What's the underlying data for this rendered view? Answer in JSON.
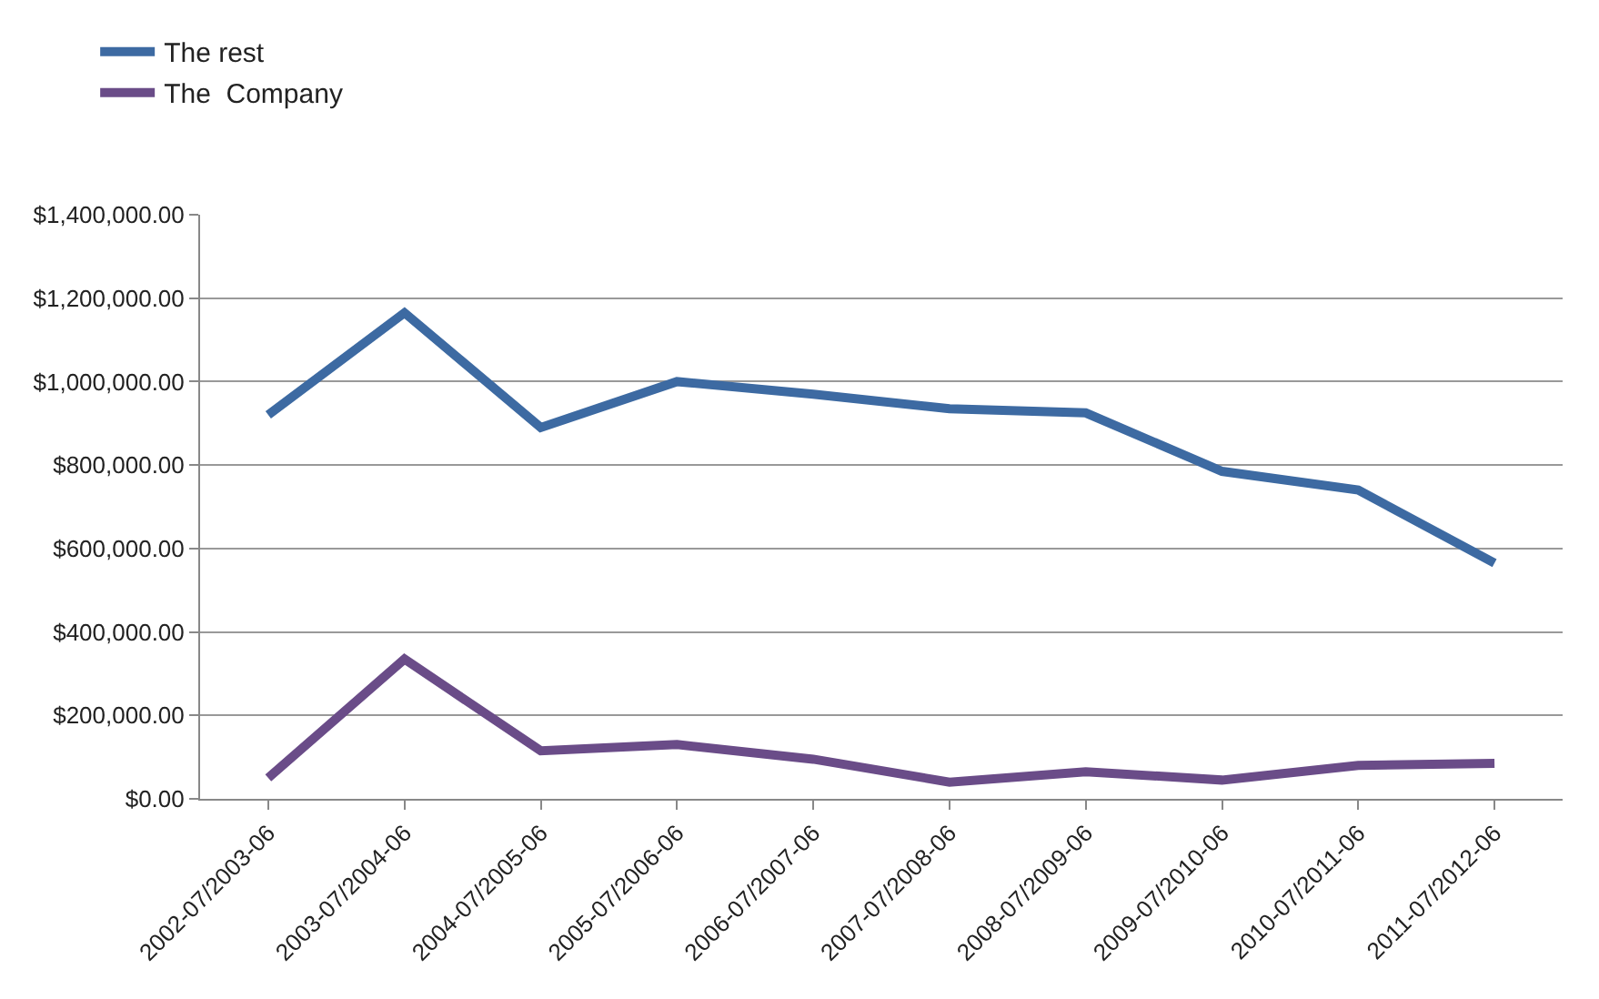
{
  "chart_data": {
    "type": "line",
    "categories": [
      "2002-07/2003-06",
      "2003-07/2004-06",
      "2004-07/2005-06",
      "2005-07/2006-06",
      "2006-07/2007-06",
      "2007-07/2008-06",
      "2008-07/2009-06",
      "2009-07/2010-06",
      "2010-07/2011-06",
      "2011-07/2012-06"
    ],
    "series": [
      {
        "name": "The rest",
        "color": "#3d6aa2",
        "values": [
          920000,
          1165000,
          890000,
          1000000,
          970000,
          935000,
          925000,
          785000,
          740000,
          565000
        ]
      },
      {
        "name": "The  Company",
        "color": "#6a4c88",
        "values": [
          50000,
          335000,
          115000,
          130000,
          95000,
          40000,
          65000,
          45000,
          80000,
          85000
        ]
      }
    ],
    "ylim": [
      0,
      1400000
    ],
    "yticks": [
      {
        "value": 0,
        "label": "$0.00"
      },
      {
        "value": 200000,
        "label": "$200,000.00"
      },
      {
        "value": 400000,
        "label": "$400,000.00"
      },
      {
        "value": 600000,
        "label": "$600,000.00"
      },
      {
        "value": 800000,
        "label": "$800,000.00"
      },
      {
        "value": 1000000,
        "label": "$1,000,000.00"
      },
      {
        "value": 1200000,
        "label": "$1,200,000.00"
      },
      {
        "value": 1400000,
        "label": "$1,400,000.00"
      }
    ],
    "grid": "y",
    "legend": "top left",
    "marker": "none",
    "line_style": "solid"
  }
}
